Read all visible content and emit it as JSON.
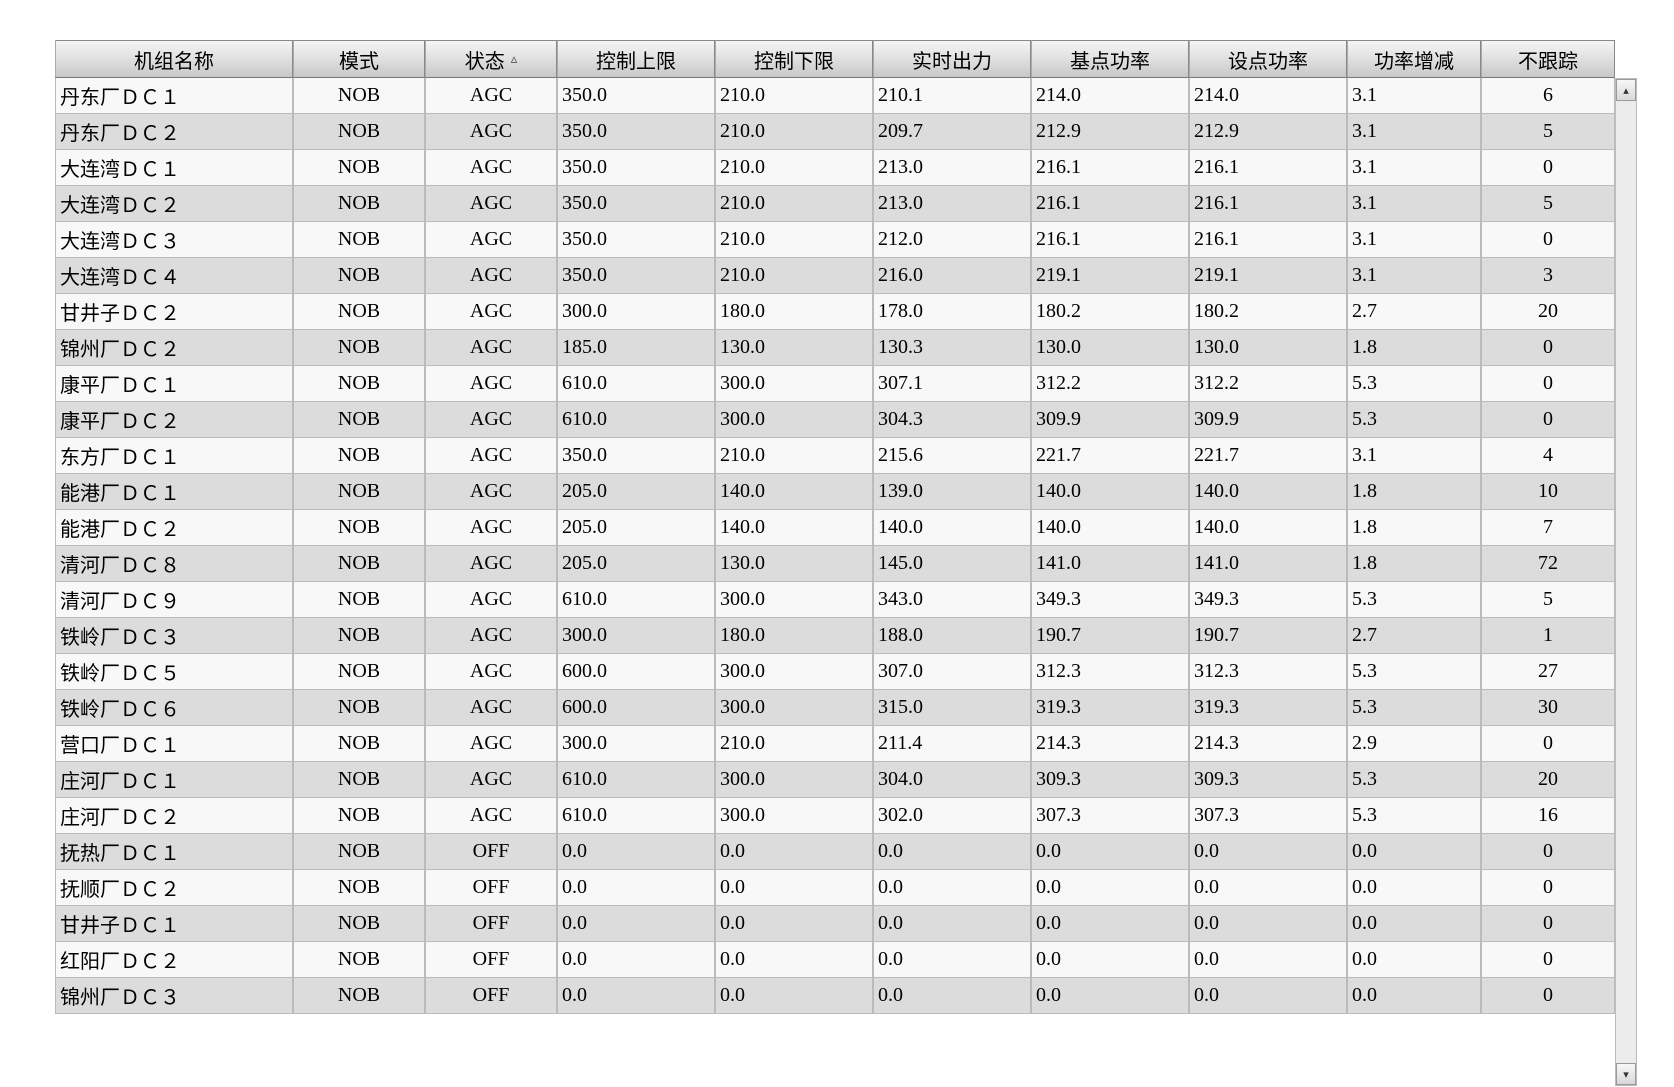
{
  "table": {
    "sorted_column_index": 2,
    "sort_indicator": "▵",
    "columns": [
      {
        "label": "机组名称",
        "align": "l",
        "header_align": "c"
      },
      {
        "label": "模式",
        "align": "c",
        "header_align": "c"
      },
      {
        "label": "状态",
        "align": "c",
        "header_align": "c"
      },
      {
        "label": "控制上限",
        "align": "l",
        "header_align": "c"
      },
      {
        "label": "控制下限",
        "align": "l",
        "header_align": "c"
      },
      {
        "label": "实时出力",
        "align": "l",
        "header_align": "c"
      },
      {
        "label": "基点功率",
        "align": "l",
        "header_align": "c"
      },
      {
        "label": "设点功率",
        "align": "l",
        "header_align": "c"
      },
      {
        "label": "功率增减",
        "align": "l",
        "header_align": "c"
      },
      {
        "label": "不跟踪",
        "align": "c",
        "header_align": "c"
      }
    ],
    "rows": [
      [
        "丹东厂ＤＣ１",
        "NOB",
        "AGC",
        "350.0",
        "210.0",
        "210.1",
        "214.0",
        "214.0",
        "3.1",
        "6"
      ],
      [
        "丹东厂ＤＣ２",
        "NOB",
        "AGC",
        "350.0",
        "210.0",
        "209.7",
        "212.9",
        "212.9",
        "3.1",
        "5"
      ],
      [
        "大连湾ＤＣ１",
        "NOB",
        "AGC",
        "350.0",
        "210.0",
        "213.0",
        "216.1",
        "216.1",
        "3.1",
        "0"
      ],
      [
        "大连湾ＤＣ２",
        "NOB",
        "AGC",
        "350.0",
        "210.0",
        "213.0",
        "216.1",
        "216.1",
        "3.1",
        "5"
      ],
      [
        "大连湾ＤＣ３",
        "NOB",
        "AGC",
        "350.0",
        "210.0",
        "212.0",
        "216.1",
        "216.1",
        "3.1",
        "0"
      ],
      [
        "大连湾ＤＣ４",
        "NOB",
        "AGC",
        "350.0",
        "210.0",
        "216.0",
        "219.1",
        "219.1",
        "3.1",
        "3"
      ],
      [
        "甘井子ＤＣ２",
        "NOB",
        "AGC",
        "300.0",
        "180.0",
        "178.0",
        "180.2",
        "180.2",
        "2.7",
        "20"
      ],
      [
        "锦州厂ＤＣ２",
        "NOB",
        "AGC",
        "185.0",
        "130.0",
        "130.3",
        "130.0",
        "130.0",
        "1.8",
        "0"
      ],
      [
        "康平厂ＤＣ１",
        "NOB",
        "AGC",
        "610.0",
        "300.0",
        "307.1",
        "312.2",
        "312.2",
        "5.3",
        "0"
      ],
      [
        "康平厂ＤＣ２",
        "NOB",
        "AGC",
        "610.0",
        "300.0",
        "304.3",
        "309.9",
        "309.9",
        "5.3",
        "0"
      ],
      [
        "东方厂ＤＣ１",
        "NOB",
        "AGC",
        "350.0",
        "210.0",
        "215.6",
        "221.7",
        "221.7",
        "3.1",
        "4"
      ],
      [
        "能港厂ＤＣ１",
        "NOB",
        "AGC",
        "205.0",
        "140.0",
        "139.0",
        "140.0",
        "140.0",
        "1.8",
        "10"
      ],
      [
        "能港厂ＤＣ２",
        "NOB",
        "AGC",
        "205.0",
        "140.0",
        "140.0",
        "140.0",
        "140.0",
        "1.8",
        "7"
      ],
      [
        "清河厂ＤＣ８",
        "NOB",
        "AGC",
        "205.0",
        "130.0",
        "145.0",
        "141.0",
        "141.0",
        "1.8",
        "72"
      ],
      [
        "清河厂ＤＣ９",
        "NOB",
        "AGC",
        "610.0",
        "300.0",
        "343.0",
        "349.3",
        "349.3",
        "5.3",
        "5"
      ],
      [
        "铁岭厂ＤＣ３",
        "NOB",
        "AGC",
        "300.0",
        "180.0",
        "188.0",
        "190.7",
        "190.7",
        "2.7",
        "1"
      ],
      [
        "铁岭厂ＤＣ５",
        "NOB",
        "AGC",
        "600.0",
        "300.0",
        "307.0",
        "312.3",
        "312.3",
        "5.3",
        "27"
      ],
      [
        "铁岭厂ＤＣ６",
        "NOB",
        "AGC",
        "600.0",
        "300.0",
        "315.0",
        "319.3",
        "319.3",
        "5.3",
        "30"
      ],
      [
        "营口厂ＤＣ１",
        "NOB",
        "AGC",
        "300.0",
        "210.0",
        "211.4",
        "214.3",
        "214.3",
        "2.9",
        "0"
      ],
      [
        "庄河厂ＤＣ１",
        "NOB",
        "AGC",
        "610.0",
        "300.0",
        "304.0",
        "309.3",
        "309.3",
        "5.3",
        "20"
      ],
      [
        "庄河厂ＤＣ２",
        "NOB",
        "AGC",
        "610.0",
        "300.0",
        "302.0",
        "307.3",
        "307.3",
        "5.3",
        "16"
      ],
      [
        "抚热厂ＤＣ１",
        "NOB",
        "OFF",
        "0.0",
        "0.0",
        "0.0",
        "0.0",
        "0.0",
        "0.0",
        "0"
      ],
      [
        "抚顺厂ＤＣ２",
        "NOB",
        "OFF",
        "0.0",
        "0.0",
        "0.0",
        "0.0",
        "0.0",
        "0.0",
        "0"
      ],
      [
        "甘井子ＤＣ１",
        "NOB",
        "OFF",
        "0.0",
        "0.0",
        "0.0",
        "0.0",
        "0.0",
        "0.0",
        "0"
      ],
      [
        "红阳厂ＤＣ２",
        "NOB",
        "OFF",
        "0.0",
        "0.0",
        "0.0",
        "0.0",
        "0.0",
        "0.0",
        "0"
      ],
      [
        "锦州厂ＤＣ３",
        "NOB",
        "OFF",
        "0.0",
        "0.0",
        "0.0",
        "0.0",
        "0.0",
        "0.0",
        "0"
      ]
    ],
    "colors": {
      "row_even_bg": "#f8f8f8",
      "row_odd_bg": "#dcdcdc",
      "border": "#bbbbbb",
      "header_grad_top": "#f5f5f5",
      "header_grad_bot": "#c8c8c8",
      "text": "#000000"
    },
    "font": {
      "family": "SimSun",
      "size_pt": 15
    }
  },
  "scrollbar": {
    "up_glyph": "▴",
    "down_glyph": "▾"
  }
}
